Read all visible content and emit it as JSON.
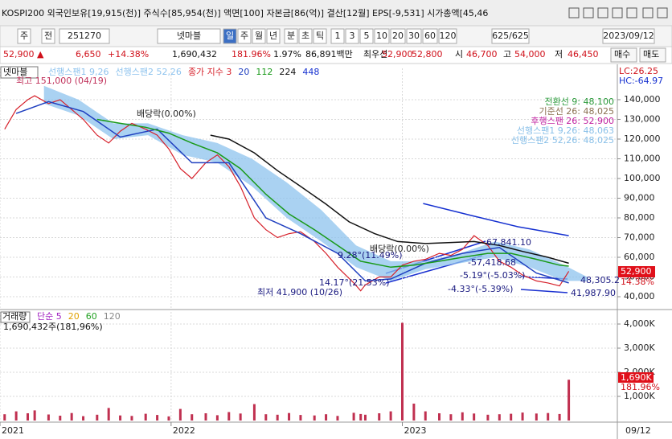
{
  "header": {
    "title": "KOSPI200 외국인보유[19,915(천)] 주식수[85,954(천)] 액면[100] 자본금[86(억)] 결산[12월] EPS[-9,531] 시가총액[45,46"
  },
  "toolbar": {
    "items": [
      "주",
      "전",
      "251270",
      "넷마블",
      "일",
      "주",
      "월",
      "년",
      "분",
      "초",
      "틱",
      "1",
      "3",
      "5",
      "10",
      "20",
      "30",
      "60",
      "120",
      "625/625",
      "2023/09/12"
    ]
  },
  "quote": {
    "items": [
      {
        "text": "52,900 ▲",
        "color": "#d0101a"
      },
      {
        "text": "6,650",
        "color": "#d0101a"
      },
      {
        "text": "+14.38%",
        "color": "#d0101a"
      },
      {
        "text": "1,690,432",
        "color": "#111111"
      },
      {
        "text": "181.96%",
        "color": "#d0101a"
      },
      {
        "text": "1.97%",
        "color": "#111111"
      },
      {
        "text": "86,891백만",
        "color": "#111111"
      },
      {
        "text": "최우선",
        "color": "#111111"
      },
      {
        "text": "52,900",
        "color": "#d0101a"
      },
      {
        "text": "52,800",
        "color": "#d0101a"
      },
      {
        "text": "시",
        "color": "#111111"
      },
      {
        "text": "46,700",
        "color": "#d0101a"
      },
      {
        "text": "고",
        "color": "#111111"
      },
      {
        "text": "54,000",
        "color": "#d0101a"
      },
      {
        "text": "저",
        "color": "#111111"
      },
      {
        "text": "46,450",
        "color": "#d0101a"
      },
      {
        "text": "매수",
        "color": "#111111"
      },
      {
        "text": "매도",
        "color": "#111111"
      }
    ]
  },
  "chart_data": [
    {
      "type": "line",
      "legend_title": "넷마블",
      "xlim": [
        2021.26,
        2023.93
      ],
      "ylim": [
        34300,
        155900
      ],
      "yticks": [
        {
          "value": 40000,
          "label": "40,000"
        },
        {
          "value": 50000,
          "label": "50,000"
        },
        {
          "value": 60000,
          "label": "60,000"
        },
        {
          "value": 70000,
          "label": "70,000"
        },
        {
          "value": 80000,
          "label": "80,000"
        },
        {
          "value": 90000,
          "label": "90,000"
        },
        {
          "value": 100000,
          "label": "100,000"
        },
        {
          "value": 110000,
          "label": "110,000"
        },
        {
          "value": 120000,
          "label": "120,000"
        },
        {
          "value": 130000,
          "label": "130,000"
        },
        {
          "value": 140000,
          "label": "140,000"
        }
      ],
      "grid": true,
      "cloud": {
        "names": [
          "선행스팬1 9,26",
          "선행스팬2 52,26"
        ],
        "color": "#8ec3ee",
        "x": [
          2021.45,
          2021.6,
          2021.75,
          2021.9,
          2022.05,
          2022.2,
          2022.35,
          2022.5,
          2022.65,
          2022.8,
          2022.95,
          2023.1,
          2023.25,
          2023.4,
          2023.55,
          2023.7,
          2023.8
        ],
        "upper": [
          147000,
          140000,
          128000,
          128000,
          122000,
          118000,
          110000,
          98000,
          84000,
          66000,
          58000,
          58000,
          62000,
          68000,
          64000,
          56000,
          50000
        ],
        "lower": [
          138000,
          132000,
          120000,
          122000,
          112000,
          108000,
          96000,
          80000,
          68000,
          55000,
          48000,
          54000,
          57000,
          60000,
          55000,
          48000,
          48000
        ]
      },
      "series": [
        {
          "name": "종가 지수 3",
          "color": "#d6202a",
          "x": [
            2021.28,
            2021.33,
            2021.38,
            2021.41,
            2021.47,
            2021.52,
            2021.57,
            2021.62,
            2021.68,
            2021.73,
            2021.78,
            2021.83,
            2021.89,
            2021.94,
            2021.99,
            2022.04,
            2022.09,
            2022.15,
            2022.2,
            2022.25,
            2022.3,
            2022.36,
            2022.41,
            2022.46,
            2022.51,
            2022.56,
            2022.62,
            2022.67,
            2022.72,
            2022.79,
            2022.82,
            2022.84,
            2022.9,
            2022.95,
            2023.0,
            2023.05,
            2023.1,
            2023.16,
            2023.21,
            2023.26,
            2023.31,
            2023.37,
            2023.42,
            2023.47,
            2023.52,
            2023.58,
            2023.63,
            2023.68,
            2023.72
          ],
          "values": [
            125000,
            135000,
            140000,
            142000,
            138000,
            140000,
            135000,
            130000,
            122000,
            118000,
            124000,
            128000,
            125000,
            122000,
            115000,
            105000,
            100000,
            108000,
            112000,
            106000,
            96000,
            80000,
            74000,
            70000,
            72000,
            73000,
            68000,
            62000,
            55000,
            47000,
            43000,
            46000,
            50000,
            50000,
            56000,
            58000,
            59000,
            62000,
            61000,
            64000,
            71000,
            66000,
            58000,
            55000,
            51000,
            48000,
            47000,
            45500,
            52900
          ]
        },
        {
          "name": "20",
          "color": "#2040c0",
          "x": [
            2021.33,
            2021.47,
            2021.62,
            2021.78,
            2021.94,
            2022.09,
            2022.25,
            2022.41,
            2022.56,
            2022.72,
            2022.84,
            2022.95,
            2023.1,
            2023.26,
            2023.42,
            2023.58,
            2023.72
          ],
          "values": [
            133000,
            139000,
            134000,
            121000,
            125000,
            108000,
            108000,
            80000,
            72000,
            62000,
            48000,
            49000,
            57000,
            62000,
            65000,
            52000,
            47000
          ]
        },
        {
          "name": "112",
          "color": "#1a9a1a",
          "x": [
            2021.68,
            2021.78,
            2021.89,
            2021.99,
            2022.09,
            2022.2,
            2022.3,
            2022.41,
            2022.51,
            2022.62,
            2022.72,
            2022.82,
            2022.95,
            2023.05,
            2023.16,
            2023.26,
            2023.37,
            2023.47,
            2023.58,
            2023.68,
            2023.72
          ],
          "values": [
            130000,
            128000,
            126000,
            123000,
            118000,
            113000,
            105000,
            92000,
            82000,
            74000,
            66000,
            58000,
            55000,
            56000,
            58000,
            60000,
            62000,
            62000,
            59000,
            56000,
            55500
          ]
        },
        {
          "name": "224",
          "color": "#111111",
          "x": [
            2022.17,
            2022.25,
            2022.36,
            2022.46,
            2022.56,
            2022.67,
            2022.77,
            2022.88,
            2022.98,
            2023.1,
            2023.21,
            2023.31,
            2023.42,
            2023.52,
            2023.63,
            2023.72
          ],
          "values": [
            122000,
            120000,
            113000,
            104000,
            96000,
            87000,
            78000,
            72000,
            68000,
            67000,
            67500,
            68000,
            66000,
            63000,
            60000,
            57000
          ]
        },
        {
          "name": "448",
          "color": "#1530d0",
          "x": [
            2023.09,
            2023.3,
            2023.5,
            2023.72
          ],
          "values": [
            87300,
            81200,
            75500,
            71000
          ]
        }
      ],
      "annotations": [
        {
          "text": "최고 151,000 (04/19)",
          "color": "#c0305a"
        },
        {
          "text": "배당락(0.00%)",
          "color": "#222222"
        },
        {
          "text": "최저 41,900 (10/26)",
          "color": "#1a1a80"
        },
        {
          "text": "14.17°(21.53%)",
          "color": "#1a1a80"
        },
        {
          "text": "9.28°(11.49%)",
          "color": "#1a1a80"
        },
        {
          "text": "배당락(0.00%)",
          "color": "#222222"
        },
        {
          "text": "67,841.10",
          "color": "#1a1a80"
        },
        {
          "text": "-57,418.68",
          "color": "#1a1a80"
        },
        {
          "text": "-5.19°(-5.03%)",
          "color": "#1a1a80"
        },
        {
          "text": "-4.33°(-5.39%)",
          "color": "#1a1a80"
        },
        {
          "text": "48,305.2",
          "color": "#1a1a80"
        },
        {
          "text": "41,987.90",
          "color": "#1a1a80"
        }
      ],
      "info": [
        {
          "text": "전환선 9: 48,100",
          "color": "#2a9a3a"
        },
        {
          "text": "기준선 26: 48,025",
          "color": "#8a7050"
        },
        {
          "text": "후행스팬 26: 52,900",
          "color": "#c020a0"
        },
        {
          "text": "선행스팬1 9,26: 48,063",
          "color": "#88bfe8"
        },
        {
          "text": "선행스팬2 52,26: 48,025",
          "color": "#88bfe8"
        }
      ],
      "lc": "LC:26.25",
      "hc": "HC:-64.97",
      "last_label": "52,900",
      "change_label": "14.38%"
    },
    {
      "type": "bar",
      "legend_title": "거래량",
      "legend": [
        {
          "name": "단순 5",
          "color": "#a020c0"
        },
        {
          "name": "20",
          "color": "#e0a000"
        },
        {
          "name": "60",
          "color": "#20a020"
        },
        {
          "name": "120",
          "color": "#888888"
        }
      ],
      "note": "1,690,432주(181,96%)",
      "color": "#c03050",
      "xlim": [
        2021.26,
        2023.93
      ],
      "xticks": [
        {
          "value": 2021.26,
          "label": "2021"
        },
        2022,
        2023
      ],
      "x_end_label": "09/12",
      "ylim": [
        0,
        4500
      ],
      "yticks": [
        {
          "value": 1000,
          "label": "1,000K"
        },
        {
          "value": 2000,
          "label": "2,000K"
        },
        {
          "value": 3000,
          "label": "3,000K"
        },
        {
          "value": 4000,
          "label": "4,000K"
        }
      ],
      "grid": true,
      "x": [
        2021.28,
        2021.33,
        2021.38,
        2021.41,
        2021.47,
        2021.52,
        2021.57,
        2021.62,
        2021.68,
        2021.73,
        2021.78,
        2021.83,
        2021.89,
        2021.94,
        2021.99,
        2022.04,
        2022.09,
        2022.15,
        2022.2,
        2022.25,
        2022.3,
        2022.36,
        2022.41,
        2022.46,
        2022.51,
        2022.56,
        2022.62,
        2022.67,
        2022.72,
        2022.79,
        2022.82,
        2022.84,
        2022.9,
        2022.95,
        2023.0,
        2023.05,
        2023.1,
        2023.16,
        2023.21,
        2023.26,
        2023.31,
        2023.37,
        2023.42,
        2023.47,
        2023.52,
        2023.58,
        2023.63,
        2023.68,
        2023.72
      ],
      "values": [
        260,
        380,
        300,
        420,
        250,
        200,
        310,
        180,
        240,
        520,
        210,
        190,
        280,
        230,
        170,
        480,
        260,
        300,
        220,
        350,
        290,
        680,
        260,
        240,
        310,
        230,
        210,
        260,
        190,
        320,
        270,
        240,
        300,
        380,
        4050,
        700,
        380,
        300,
        260,
        340,
        290,
        240,
        260,
        280,
        330,
        290,
        310,
        270,
        1690
      ],
      "last_label": "1,690K",
      "change_label": "181.96%"
    }
  ]
}
